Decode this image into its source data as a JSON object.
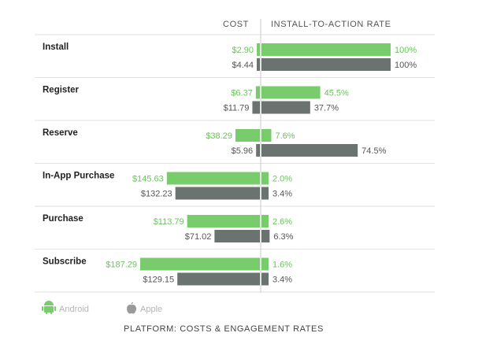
{
  "chart_data": {
    "type": "bar",
    "title": "PLATFORM: COSTS & ENGAGEMENT RATES",
    "column_headers": {
      "cost": "COST",
      "rate": "INSTALL-TO-ACTION RATE"
    },
    "categories": [
      "Install",
      "Register",
      "Reserve",
      "In-App Purchase",
      "Purchase",
      "Subscribe"
    ],
    "series": [
      {
        "name": "Android",
        "color": "#78cc6c",
        "text_color": "#6cc35e",
        "cost": [
          2.9,
          6.37,
          38.29,
          145.63,
          113.79,
          187.29
        ],
        "cost_labels": [
          "$2.90",
          "$6.37",
          "$38.29",
          "$145.63",
          "$113.79",
          "$187.29"
        ],
        "rate": [
          100,
          45.5,
          7.6,
          2.0,
          2.6,
          1.6
        ],
        "rate_labels": [
          "100%",
          "45.5%",
          "7.6%",
          "2.0%",
          "2.6%",
          "1.6%"
        ]
      },
      {
        "name": "Apple",
        "color": "#6a7370",
        "text_color": "#555555",
        "cost": [
          4.44,
          11.79,
          5.96,
          132.23,
          71.02,
          129.15
        ],
        "cost_labels": [
          "$4.44",
          "$11.79",
          "$5.96",
          "$132.23",
          "$71.02",
          "$129.15"
        ],
        "rate": [
          100,
          37.7,
          74.5,
          3.4,
          6.3,
          3.4
        ],
        "rate_labels": [
          "100%",
          "37.7%",
          "74.5%",
          "3.4%",
          "6.3%",
          "3.4%"
        ]
      }
    ],
    "cost_axis_max": 187.29,
    "rate_axis_max": 100,
    "legend": [
      "Android",
      "Apple"
    ]
  }
}
